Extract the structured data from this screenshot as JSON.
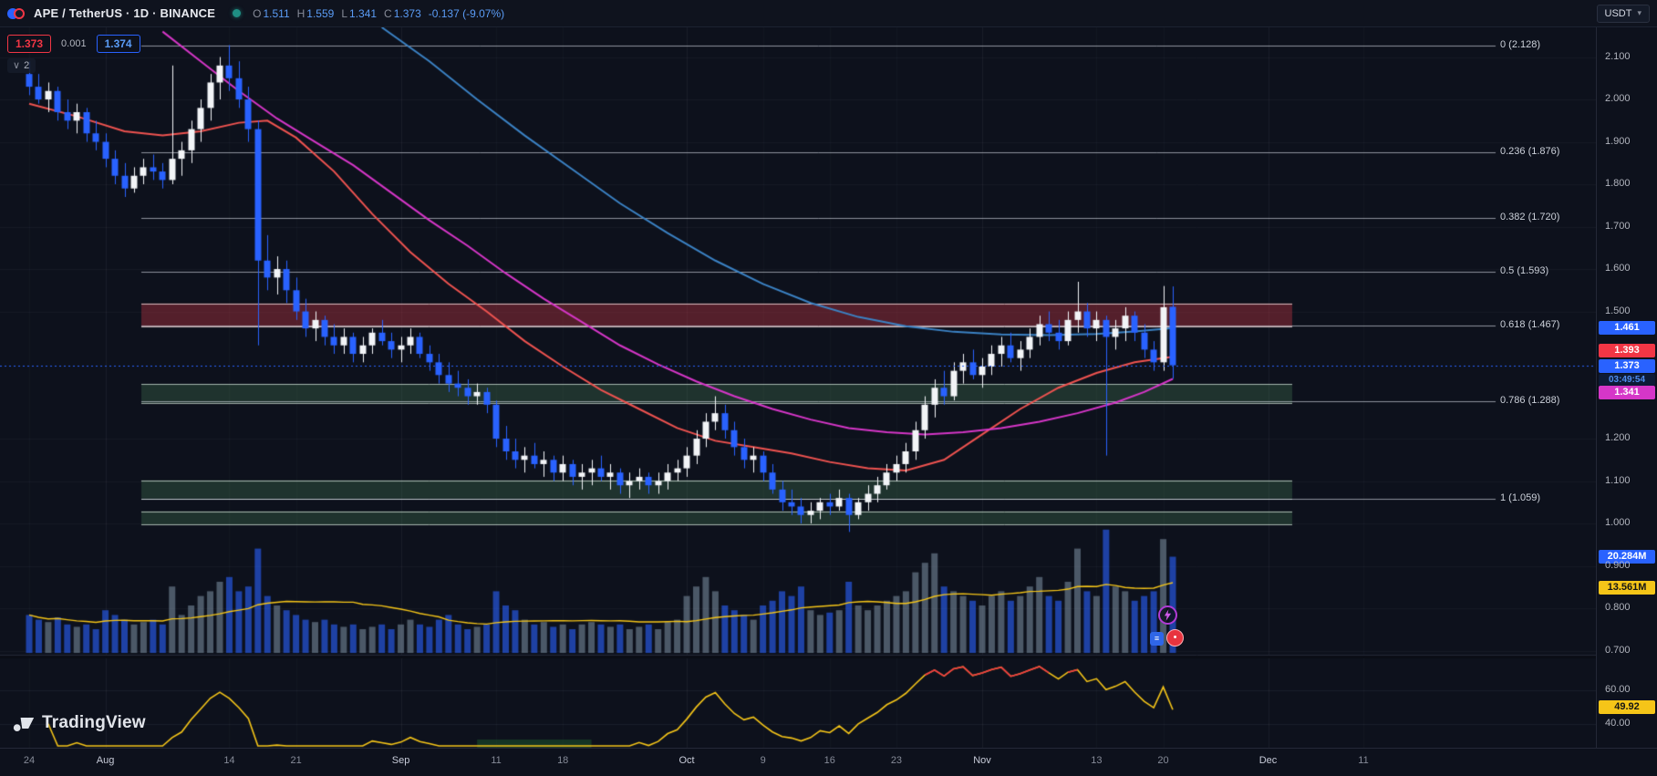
{
  "toolbar": {
    "symbol_title": "APE / TetherUS · 1D · BINANCE",
    "ohlc": {
      "o_label": "O",
      "open": "1.511",
      "h_label": "H",
      "high": "1.559",
      "l_label": "L",
      "low": "1.341",
      "c_label": "C",
      "close": "1.373",
      "change": "-0.137 (-9.07%)"
    },
    "currency": "USDT"
  },
  "price_widget": {
    "bid": "1.373",
    "spread": "0.001",
    "ask": "1.374",
    "collapse_count": "2"
  },
  "icons": {
    "chevron_down": "▾",
    "collapse_chevron": "∨",
    "menu_glyph": "≡",
    "dot_glyph": "•"
  },
  "watermark": "TradingView",
  "axis": {
    "price_ticks": [
      "2.100",
      "2.000",
      "1.900",
      "1.800",
      "1.700",
      "1.600",
      "1.500",
      "1.200",
      "1.100",
      "1.000",
      "0.900",
      "0.800",
      "0.700"
    ],
    "rsi_ticks": [
      "60.00",
      "40.00"
    ],
    "badges": {
      "ma_blue": "1.461",
      "ma_red": "1.393",
      "last_price": "1.373",
      "countdown": "03:49:54",
      "ma_magenta": "1.341",
      "volume": "20.284M",
      "volume_ma": "13.561M",
      "rsi": "49.92"
    }
  },
  "time_labels": [
    {
      "label": "24",
      "i": 0
    },
    {
      "label": "Aug",
      "i": 8,
      "m": 1
    },
    {
      "label": "14",
      "i": 21
    },
    {
      "label": "21",
      "i": 28
    },
    {
      "label": "Sep",
      "i": 39,
      "m": 1
    },
    {
      "label": "11",
      "i": 49
    },
    {
      "label": "18",
      "i": 56
    },
    {
      "label": "Oct",
      "i": 69,
      "m": 1
    },
    {
      "label": "9",
      "i": 77
    },
    {
      "label": "16",
      "i": 84
    },
    {
      "label": "23",
      "i": 91
    },
    {
      "label": "Nov",
      "i": 100,
      "m": 1
    },
    {
      "label": "13",
      "i": 112
    },
    {
      "label": "20",
      "i": 119
    },
    {
      "label": "Dec",
      "i": 130,
      "m": 1
    },
    {
      "label": "11",
      "i": 140
    }
  ],
  "colors": {
    "up": "#f2f4f7",
    "down": "#2962ff",
    "accent": "#2962ff",
    "ma_fast": "#ef5350",
    "ma_mid": "#d636c8",
    "ma_slow": "#3b82c4",
    "volume_up": "rgba(128,148,166,0.55)",
    "volume_down": "rgba(41,98,255,0.60)",
    "vol_ma": "#f5c518",
    "rsi": "#f5c518",
    "rsi_hot": "#f23645"
  },
  "chart_data": {
    "type": "candlestick",
    "pair": "APE / TetherUS",
    "interval": "1D",
    "exchange": "BINANCE",
    "last_ohlc": {
      "open": 1.511,
      "high": 1.559,
      "low": 1.341,
      "close": 1.373,
      "change": -0.137,
      "change_pct": -9.07
    },
    "price_axis_range": {
      "top": 2.17,
      "bottom": 0.69
    },
    "rsi_axis": {
      "period": 14,
      "overbought": 70,
      "last": 49.92,
      "ticks": [
        60,
        40
      ]
    },
    "volume_ma_period": 20,
    "fib_levels": [
      {
        "label": "0 (2.128)",
        "price": 2.128
      },
      {
        "label": "0.236 (1.876)",
        "price": 1.876
      },
      {
        "label": "0.382 (1.720)",
        "price": 1.72
      },
      {
        "label": "0.5 (1.593)",
        "price": 1.593
      },
      {
        "label": "0.618 (1.467)",
        "price": 1.467
      },
      {
        "label": "0.786 (1.288)",
        "price": 1.288
      },
      {
        "label": "1 (1.059)",
        "price": 1.059
      }
    ],
    "zones": [
      {
        "name": "supply-zone",
        "top": 1.519,
        "bottom": 1.464,
        "fill": "rgba(183,52,64,0.42)",
        "border": "rgba(244,224,224,0.8)"
      },
      {
        "name": "demand-zone-1",
        "top": 1.329,
        "bottom": 1.284,
        "fill": "rgba(84,150,100,0.26)",
        "border": "rgba(222,238,226,0.7)"
      },
      {
        "name": "demand-zone-2",
        "top": 1.102,
        "bottom": 1.059,
        "fill": "rgba(84,150,100,0.26)",
        "border": "rgba(222,238,226,0.7)"
      },
      {
        "name": "demand-zone-3",
        "top": 1.029,
        "bottom": 0.997,
        "fill": "rgba(84,150,100,0.26)",
        "border": "rgba(222,238,226,0.7)"
      }
    ],
    "session_highlight": {
      "from_index": 47,
      "to_index": 59
    },
    "ma_lines": [
      {
        "name": "ma-fast",
        "points": [
          [
            0,
            1.99
          ],
          [
            5,
            1.96
          ],
          [
            10,
            1.925
          ],
          [
            14,
            1.915
          ],
          [
            18,
            1.925
          ],
          [
            22,
            1.945
          ],
          [
            25,
            1.95
          ],
          [
            28,
            1.91
          ],
          [
            32,
            1.83
          ],
          [
            36,
            1.73
          ],
          [
            40,
            1.64
          ],
          [
            44,
            1.565
          ],
          [
            48,
            1.5
          ],
          [
            52,
            1.43
          ],
          [
            56,
            1.37
          ],
          [
            60,
            1.315
          ],
          [
            64,
            1.27
          ],
          [
            68,
            1.225
          ],
          [
            72,
            1.195
          ],
          [
            76,
            1.18
          ],
          [
            80,
            1.165
          ],
          [
            84,
            1.145
          ],
          [
            88,
            1.13
          ],
          [
            92,
            1.125
          ],
          [
            96,
            1.15
          ],
          [
            100,
            1.21
          ],
          [
            104,
            1.27
          ],
          [
            108,
            1.32
          ],
          [
            112,
            1.355
          ],
          [
            116,
            1.38
          ],
          [
            120,
            1.393
          ]
        ]
      },
      {
        "name": "ma-mid",
        "points": [
          [
            14,
            2.16
          ],
          [
            18,
            2.09
          ],
          [
            22,
            2.02
          ],
          [
            26,
            1.955
          ],
          [
            30,
            1.9
          ],
          [
            34,
            1.845
          ],
          [
            38,
            1.78
          ],
          [
            42,
            1.715
          ],
          [
            46,
            1.655
          ],
          [
            50,
            1.59
          ],
          [
            54,
            1.53
          ],
          [
            58,
            1.475
          ],
          [
            62,
            1.42
          ],
          [
            66,
            1.375
          ],
          [
            70,
            1.335
          ],
          [
            74,
            1.3
          ],
          [
            78,
            1.27
          ],
          [
            82,
            1.245
          ],
          [
            86,
            1.225
          ],
          [
            90,
            1.215
          ],
          [
            94,
            1.21
          ],
          [
            98,
            1.215
          ],
          [
            102,
            1.225
          ],
          [
            106,
            1.24
          ],
          [
            110,
            1.26
          ],
          [
            114,
            1.285
          ],
          [
            117,
            1.31
          ],
          [
            120,
            1.341
          ]
        ]
      },
      {
        "name": "ma-slow",
        "points": [
          [
            37,
            2.17
          ],
          [
            42,
            2.09
          ],
          [
            47,
            2.0
          ],
          [
            52,
            1.915
          ],
          [
            57,
            1.835
          ],
          [
            62,
            1.755
          ],
          [
            67,
            1.685
          ],
          [
            72,
            1.62
          ],
          [
            77,
            1.565
          ],
          [
            82,
            1.52
          ],
          [
            87,
            1.487
          ],
          [
            92,
            1.465
          ],
          [
            97,
            1.452
          ],
          [
            102,
            1.446
          ],
          [
            107,
            1.444
          ],
          [
            112,
            1.447
          ],
          [
            116,
            1.453
          ],
          [
            120,
            1.461
          ]
        ]
      }
    ],
    "candles": [
      [
        2.06,
        2.09,
        2.01,
        2.03,
        8
      ],
      [
        2.03,
        2.06,
        1.99,
        2.0,
        7
      ],
      [
        2.0,
        2.04,
        1.97,
        2.02,
        6.5
      ],
      [
        2.02,
        2.03,
        1.95,
        1.97,
        7.5
      ],
      [
        1.97,
        2.0,
        1.93,
        1.95,
        6
      ],
      [
        1.95,
        1.99,
        1.92,
        1.97,
        5.5
      ],
      [
        1.97,
        1.98,
        1.9,
        1.92,
        6
      ],
      [
        1.92,
        1.95,
        1.88,
        1.9,
        5
      ],
      [
        1.9,
        1.92,
        1.84,
        1.86,
        9
      ],
      [
        1.86,
        1.88,
        1.8,
        1.82,
        8
      ],
      [
        1.82,
        1.85,
        1.77,
        1.79,
        7
      ],
      [
        1.79,
        1.84,
        1.78,
        1.82,
        6
      ],
      [
        1.82,
        1.86,
        1.8,
        1.84,
        6.5
      ],
      [
        1.84,
        1.87,
        1.81,
        1.83,
        7
      ],
      [
        1.83,
        1.85,
        1.79,
        1.81,
        6
      ],
      [
        1.81,
        2.08,
        1.8,
        1.86,
        14
      ],
      [
        1.86,
        1.9,
        1.82,
        1.88,
        8
      ],
      [
        1.88,
        1.95,
        1.85,
        1.93,
        10
      ],
      [
        1.93,
        2.0,
        1.9,
        1.98,
        12
      ],
      [
        1.98,
        2.06,
        1.95,
        2.04,
        13
      ],
      [
        2.04,
        2.1,
        2.0,
        2.08,
        15
      ],
      [
        2.08,
        2.128,
        2.02,
        2.05,
        16
      ],
      [
        2.05,
        2.09,
        1.98,
        2.0,
        13
      ],
      [
        2.0,
        2.03,
        1.9,
        1.93,
        14
      ],
      [
        1.93,
        1.95,
        1.42,
        1.62,
        22
      ],
      [
        1.62,
        1.68,
        1.55,
        1.58,
        12
      ],
      [
        1.58,
        1.63,
        1.54,
        1.6,
        10
      ],
      [
        1.6,
        1.62,
        1.52,
        1.55,
        9
      ],
      [
        1.55,
        1.58,
        1.48,
        1.5,
        8
      ],
      [
        1.5,
        1.53,
        1.44,
        1.46,
        7
      ],
      [
        1.46,
        1.5,
        1.43,
        1.48,
        6.5
      ],
      [
        1.48,
        1.49,
        1.42,
        1.44,
        7
      ],
      [
        1.44,
        1.47,
        1.4,
        1.42,
        6
      ],
      [
        1.42,
        1.46,
        1.4,
        1.44,
        5.5
      ],
      [
        1.44,
        1.45,
        1.38,
        1.4,
        6
      ],
      [
        1.4,
        1.44,
        1.38,
        1.42,
        5
      ],
      [
        1.42,
        1.46,
        1.4,
        1.45,
        5.5
      ],
      [
        1.45,
        1.48,
        1.42,
        1.43,
        6
      ],
      [
        1.43,
        1.45,
        1.39,
        1.41,
        5
      ],
      [
        1.41,
        1.44,
        1.38,
        1.42,
        6
      ],
      [
        1.42,
        1.46,
        1.4,
        1.44,
        7
      ],
      [
        1.44,
        1.45,
        1.39,
        1.4,
        6
      ],
      [
        1.4,
        1.42,
        1.36,
        1.38,
        5.5
      ],
      [
        1.38,
        1.4,
        1.33,
        1.35,
        7
      ],
      [
        1.35,
        1.38,
        1.31,
        1.33,
        8
      ],
      [
        1.33,
        1.36,
        1.3,
        1.32,
        6
      ],
      [
        1.32,
        1.34,
        1.28,
        1.3,
        5
      ],
      [
        1.3,
        1.33,
        1.28,
        1.31,
        5.5
      ],
      [
        1.31,
        1.32,
        1.26,
        1.28,
        6
      ],
      [
        1.28,
        1.29,
        1.18,
        1.2,
        13
      ],
      [
        1.2,
        1.23,
        1.15,
        1.17,
        10
      ],
      [
        1.17,
        1.2,
        1.13,
        1.15,
        9
      ],
      [
        1.15,
        1.18,
        1.12,
        1.16,
        7
      ],
      [
        1.16,
        1.19,
        1.13,
        1.14,
        6
      ],
      [
        1.14,
        1.17,
        1.11,
        1.15,
        6.5
      ],
      [
        1.15,
        1.16,
        1.1,
        1.12,
        5.5
      ],
      [
        1.12,
        1.16,
        1.1,
        1.14,
        6
      ],
      [
        1.14,
        1.15,
        1.09,
        1.11,
        5
      ],
      [
        1.11,
        1.14,
        1.08,
        1.12,
        6
      ],
      [
        1.12,
        1.15,
        1.09,
        1.13,
        6.5
      ],
      [
        1.13,
        1.16,
        1.1,
        1.11,
        6
      ],
      [
        1.11,
        1.14,
        1.08,
        1.12,
        5.5
      ],
      [
        1.12,
        1.13,
        1.07,
        1.09,
        6
      ],
      [
        1.09,
        1.12,
        1.06,
        1.1,
        5
      ],
      [
        1.1,
        1.13,
        1.08,
        1.11,
        5.5
      ],
      [
        1.11,
        1.12,
        1.07,
        1.09,
        6
      ],
      [
        1.09,
        1.12,
        1.07,
        1.1,
        5
      ],
      [
        1.1,
        1.14,
        1.08,
        1.12,
        6.5
      ],
      [
        1.12,
        1.15,
        1.1,
        1.13,
        7
      ],
      [
        1.13,
        1.18,
        1.11,
        1.16,
        12
      ],
      [
        1.16,
        1.22,
        1.14,
        1.2,
        14
      ],
      [
        1.2,
        1.26,
        1.18,
        1.24,
        16
      ],
      [
        1.24,
        1.3,
        1.22,
        1.26,
        13
      ],
      [
        1.26,
        1.28,
        1.2,
        1.22,
        10
      ],
      [
        1.22,
        1.24,
        1.16,
        1.18,
        9
      ],
      [
        1.18,
        1.2,
        1.13,
        1.15,
        8
      ],
      [
        1.15,
        1.18,
        1.12,
        1.16,
        7
      ],
      [
        1.16,
        1.17,
        1.1,
        1.12,
        10
      ],
      [
        1.12,
        1.14,
        1.07,
        1.08,
        11
      ],
      [
        1.08,
        1.1,
        1.03,
        1.05,
        13
      ],
      [
        1.05,
        1.08,
        1.02,
        1.04,
        12
      ],
      [
        1.04,
        1.06,
        1.0,
        1.02,
        14
      ],
      [
        1.02,
        1.05,
        1.0,
        1.03,
        9
      ],
      [
        1.03,
        1.06,
        1.01,
        1.05,
        8
      ],
      [
        1.05,
        1.07,
        1.02,
        1.04,
        8.5
      ],
      [
        1.04,
        1.08,
        1.03,
        1.06,
        9
      ],
      [
        1.06,
        1.07,
        0.98,
        1.02,
        15
      ],
      [
        1.02,
        1.06,
        1.01,
        1.05,
        10
      ],
      [
        1.05,
        1.09,
        1.03,
        1.07,
        9
      ],
      [
        1.07,
        1.11,
        1.05,
        1.09,
        10
      ],
      [
        1.09,
        1.14,
        1.08,
        1.12,
        11
      ],
      [
        1.12,
        1.16,
        1.1,
        1.14,
        12
      ],
      [
        1.14,
        1.19,
        1.12,
        1.17,
        13
      ],
      [
        1.17,
        1.24,
        1.15,
        1.22,
        17
      ],
      [
        1.22,
        1.3,
        1.2,
        1.28,
        19
      ],
      [
        1.28,
        1.34,
        1.25,
        1.32,
        21
      ],
      [
        1.32,
        1.36,
        1.28,
        1.3,
        14
      ],
      [
        1.3,
        1.38,
        1.29,
        1.36,
        13
      ],
      [
        1.36,
        1.4,
        1.33,
        1.38,
        12
      ],
      [
        1.38,
        1.41,
        1.34,
        1.35,
        11
      ],
      [
        1.35,
        1.39,
        1.32,
        1.37,
        10
      ],
      [
        1.37,
        1.42,
        1.35,
        1.4,
        12
      ],
      [
        1.4,
        1.44,
        1.37,
        1.42,
        13
      ],
      [
        1.42,
        1.45,
        1.38,
        1.39,
        11
      ],
      [
        1.39,
        1.43,
        1.36,
        1.41,
        12
      ],
      [
        1.41,
        1.46,
        1.39,
        1.44,
        14
      ],
      [
        1.44,
        1.49,
        1.42,
        1.47,
        16
      ],
      [
        1.47,
        1.5,
        1.43,
        1.45,
        12
      ],
      [
        1.45,
        1.48,
        1.41,
        1.43,
        11
      ],
      [
        1.43,
        1.5,
        1.42,
        1.48,
        15
      ],
      [
        1.48,
        1.57,
        1.45,
        1.5,
        22
      ],
      [
        1.5,
        1.52,
        1.44,
        1.46,
        13
      ],
      [
        1.46,
        1.5,
        1.43,
        1.48,
        12
      ],
      [
        1.48,
        1.49,
        1.16,
        1.44,
        26
      ],
      [
        1.44,
        1.48,
        1.41,
        1.46,
        14
      ],
      [
        1.46,
        1.51,
        1.43,
        1.49,
        13
      ],
      [
        1.49,
        1.5,
        1.43,
        1.45,
        11
      ],
      [
        1.45,
        1.47,
        1.39,
        1.41,
        12
      ],
      [
        1.41,
        1.43,
        1.36,
        1.38,
        13
      ],
      [
        1.38,
        1.56,
        1.36,
        1.51,
        24
      ],
      [
        1.511,
        1.559,
        1.341,
        1.373,
        20.284
      ]
    ]
  }
}
